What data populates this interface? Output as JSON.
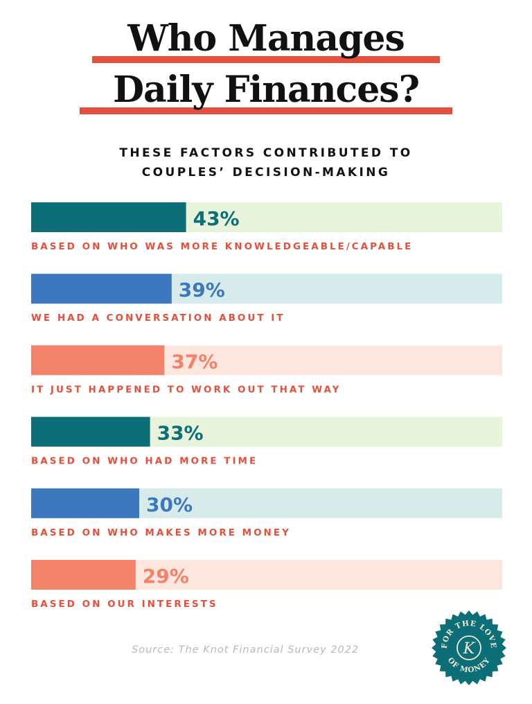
{
  "header": {
    "title_line1": "Who Manages",
    "title_line2": "Daily Finances?",
    "subtitle_line1": "THESE FACTORS CONTRIBUTED TO",
    "subtitle_line2": "COUPLES’ DECISION-MAKING"
  },
  "chart_data": {
    "type": "bar",
    "orientation": "horizontal",
    "value_format": "percent",
    "xlim": [
      0,
      100
    ],
    "categories": [
      "BASED ON WHO WAS MORE KNOWLEDGEABLE/CAPABLE",
      "WE HAD A CONVERSATION ABOUT IT",
      "IT JUST HAPPENED TO WORK OUT THAT WAY",
      "BASED ON WHO HAD MORE TIME",
      "BASED ON WHO MAKES MORE MONEY",
      "BASED ON OUR INTERESTS"
    ],
    "values": [
      43,
      39,
      37,
      33,
      30,
      29
    ],
    "labels": [
      "43%",
      "39%",
      "37%",
      "33%",
      "30%",
      "29%"
    ],
    "bar_colors": [
      "#0c6e76",
      "#3d78bf",
      "#f2826a",
      "#0c6e76",
      "#3d78bf",
      "#f2826a"
    ],
    "track_colors": [
      "#e8f3dc",
      "#d8ebeb",
      "#fde6de",
      "#e8f3dc",
      "#d8ebeb",
      "#fde6de"
    ],
    "category_label_color": "#e4503b",
    "grid": false
  },
  "footer": {
    "source": "Source: The Knot Financial Survey 2022",
    "seal_text": "FOR THE LOVE OF MONEY",
    "seal_initial": "K",
    "seal_color": "#0c6e76",
    "seal_text_color": "#f5ecd6"
  }
}
